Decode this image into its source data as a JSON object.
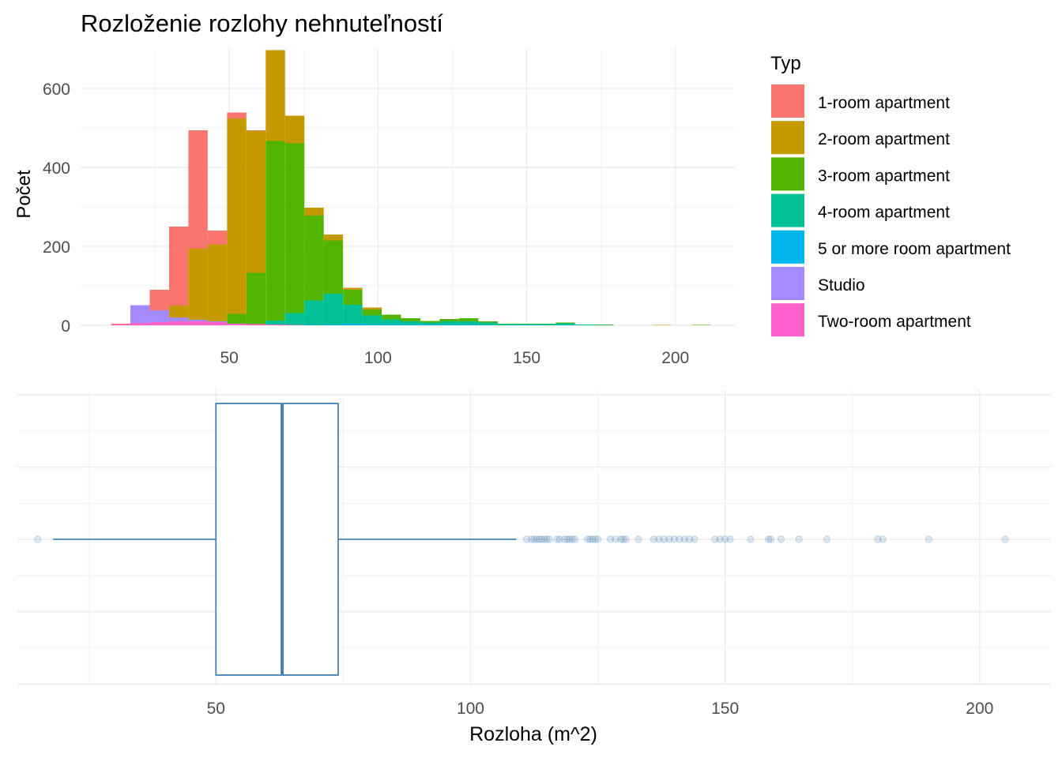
{
  "chart_data": [
    {
      "type": "bar",
      "subtype": "stacked-histogram",
      "title": "Rozloženie rozlohy nehnuteľností",
      "xlabel": "",
      "ylabel": "Počet",
      "xlim": [
        0,
        220
      ],
      "ylim": [
        0,
        700
      ],
      "x_ticks": [
        "50",
        "100",
        "150",
        "200"
      ],
      "y_ticks": [
        "0",
        "200",
        "400",
        "600"
      ],
      "bin_width": 6.5,
      "bin_centers": [
        13.5,
        20.0,
        26.5,
        33.0,
        39.5,
        46.0,
        52.5,
        59.0,
        65.5,
        72.0,
        78.5,
        85.0,
        91.5,
        98.0,
        104.5,
        111.0,
        117.5,
        124.0,
        130.5,
        137.0,
        143.5,
        150.0,
        156.5,
        163.0,
        169.5,
        176.0,
        182.5,
        189.0,
        195.5,
        202.0,
        208.5
      ],
      "legend_title": "Typ",
      "legend_position": "right",
      "grid": true,
      "series": [
        {
          "name": "Two-room apartment",
          "color": "#FF61CC",
          "values": [
            2,
            6,
            8,
            10,
            10,
            8,
            4,
            3,
            2,
            1,
            0,
            0,
            0,
            0,
            0,
            0,
            0,
            0,
            0,
            0,
            0,
            0,
            0,
            0,
            0,
            0,
            0,
            0,
            0,
            0,
            0
          ]
        },
        {
          "name": "Studio",
          "color": "#A58AFF",
          "values": [
            0,
            45,
            30,
            10,
            4,
            2,
            0,
            0,
            0,
            0,
            0,
            0,
            0,
            0,
            0,
            0,
            0,
            0,
            0,
            0,
            0,
            0,
            0,
            0,
            0,
            0,
            0,
            0,
            0,
            0,
            0
          ]
        },
        {
          "name": "5 or more room apartment",
          "color": "#00B6EB",
          "values": [
            0,
            0,
            0,
            0,
            0,
            0,
            0,
            0,
            0,
            0,
            1,
            2,
            4,
            3,
            3,
            2,
            2,
            2,
            2,
            1,
            1,
            1,
            1,
            1,
            0,
            0,
            0,
            0,
            0,
            0,
            0
          ]
        },
        {
          "name": "4-room apartment",
          "color": "#00C094",
          "values": [
            0,
            0,
            0,
            0,
            0,
            0,
            0,
            0,
            10,
            30,
            62,
            78,
            48,
            22,
            12,
            8,
            5,
            8,
            8,
            6,
            2,
            2,
            2,
            4,
            2,
            1,
            0,
            0,
            0,
            0,
            0
          ]
        },
        {
          "name": "3-room apartment",
          "color": "#53B400",
          "values": [
            0,
            0,
            0,
            0,
            0,
            0,
            25,
            130,
            455,
            430,
            215,
            135,
            38,
            15,
            12,
            8,
            4,
            6,
            8,
            3,
            1,
            1,
            1,
            2,
            0,
            1,
            0,
            0,
            0,
            0,
            1
          ]
        },
        {
          "name": "2-room apartment",
          "color": "#C49A00",
          "values": [
            0,
            0,
            0,
            30,
            180,
            195,
            495,
            360,
            230,
            70,
            20,
            15,
            5,
            5,
            0,
            0,
            0,
            0,
            0,
            0,
            0,
            0,
            0,
            0,
            0,
            0,
            0,
            0,
            1,
            0,
            0
          ]
        },
        {
          "name": "1-room apartment",
          "color": "#F8766D",
          "values": [
            2,
            0,
            52,
            200,
            300,
            35,
            15,
            1,
            0,
            0,
            0,
            0,
            0,
            0,
            0,
            0,
            0,
            0,
            0,
            0,
            0,
            0,
            0,
            0,
            0,
            0,
            0,
            0,
            0,
            0,
            0
          ]
        }
      ],
      "legend_order": [
        "1-room apartment",
        "2-room apartment",
        "3-room apartment",
        "4-room apartment",
        "5 or more room apartment",
        "Studio",
        "Two-room apartment"
      ]
    },
    {
      "type": "boxplot",
      "orientation": "horizontal",
      "xlabel": "Rozloha (m^2)",
      "ylabel": "",
      "xlim": [
        11,
        214
      ],
      "x_ticks": [
        "50",
        "100",
        "150",
        "200"
      ],
      "color": "#4682B4",
      "grid": true,
      "stats": {
        "whisker_low": 18,
        "q1": 50,
        "median": 63,
        "q3": 74,
        "whisker_high": 109
      },
      "outliers": [
        15,
        111,
        112,
        112.5,
        113,
        113.5,
        114,
        114.5,
        115,
        115.5,
        117,
        117.5,
        118.5,
        119,
        119.5,
        120,
        120.5,
        123,
        123.5,
        124,
        124.5,
        125,
        127.5,
        128.5,
        129.5,
        130,
        130.5,
        133,
        136,
        137,
        138,
        139,
        140,
        141,
        142,
        143,
        144,
        148,
        149,
        150,
        151,
        155,
        158.5,
        159,
        161,
        164.5,
        170,
        180,
        181,
        190,
        205
      ]
    }
  ]
}
